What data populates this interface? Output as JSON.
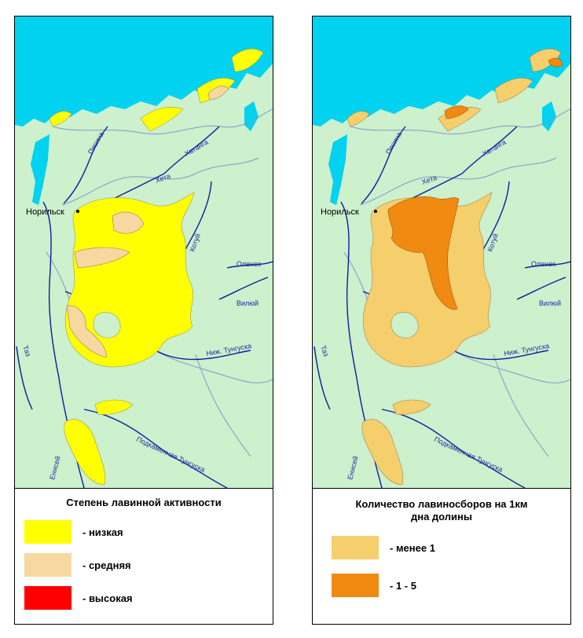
{
  "colors": {
    "land": "#cdf0cd",
    "sea": "#00d2f0",
    "river": "#0c1f9c",
    "boundary": "#8a96c6",
    "low": "#ffff00",
    "medium": "#f7d8a0",
    "high": "#ff0000",
    "less_than_1": "#f5cf6c",
    "one_to_five": "#f08a10"
  },
  "labels": {
    "city": "Норильск",
    "rivers": {
      "pyasina": "Пясина",
      "khatanga": "Хатанга",
      "kheta": "Хета",
      "kotuy": "Котуй",
      "olenek": "Оленек",
      "vilyuy": "Вилюй",
      "taz": "Таз",
      "nizh_tunguska": "Ниж. Тунгуска",
      "yenisei": "Енисей",
      "podkamennaya": "Подкаменная Тунгуска"
    }
  },
  "left_legend": {
    "title": "Степень лавинной активности",
    "items": [
      {
        "label": "- низкая",
        "color_key": "low"
      },
      {
        "label": "- средняя",
        "color_key": "medium"
      },
      {
        "label": "- высокая",
        "color_key": "high"
      }
    ]
  },
  "right_legend": {
    "title_line1": "Количество лавиносборов на 1км",
    "title_line2": "дна долины",
    "items": [
      {
        "label": "- менее 1",
        "color_key": "less_than_1"
      },
      {
        "label": "- 1 - 5",
        "color_key": "one_to_five"
      }
    ]
  }
}
